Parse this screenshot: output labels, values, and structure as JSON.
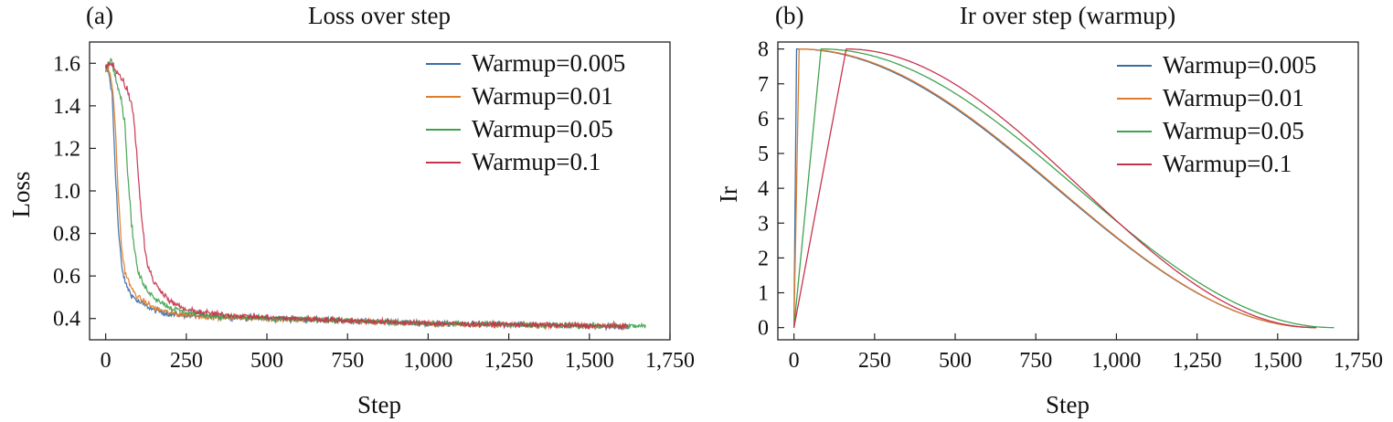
{
  "chart_data": [
    {
      "panel_label": "(a)",
      "type": "line",
      "title": "Loss over step",
      "xlabel": "Step",
      "ylabel": "Loss",
      "xlim": [
        -50,
        1750
      ],
      "ylim": [
        0.3,
        1.7
      ],
      "xticks": [
        0,
        250,
        500,
        750,
        1000,
        1250,
        1500,
        1750
      ],
      "xtick_labels": [
        "0",
        "250",
        "500",
        "750",
        "1,000",
        "1,250",
        "1,500",
        "1,750"
      ],
      "yticks": [
        0.4,
        0.6,
        0.8,
        1.0,
        1.2,
        1.4,
        1.6
      ],
      "ytick_labels": [
        "0.4",
        "0.6",
        "0.8",
        "1.0",
        "1.2",
        "1.4",
        "1.6"
      ],
      "legend_position": "top-right",
      "series": [
        {
          "name": "Warmup=0.005",
          "color": "#3b6ea5",
          "end_step": 1620,
          "points": [
            [
              0,
              1.58
            ],
            [
              10,
              1.55
            ],
            [
              20,
              1.45
            ],
            [
              30,
              1.1
            ],
            [
              40,
              0.8
            ],
            [
              50,
              0.64
            ],
            [
              60,
              0.57
            ],
            [
              80,
              0.51
            ],
            [
              100,
              0.48
            ],
            [
              150,
              0.44
            ],
            [
              200,
              0.42
            ],
            [
              300,
              0.41
            ],
            [
              500,
              0.4
            ],
            [
              750,
              0.39
            ],
            [
              1000,
              0.375
            ],
            [
              1250,
              0.37
            ],
            [
              1500,
              0.365
            ],
            [
              1620,
              0.362
            ]
          ]
        },
        {
          "name": "Warmup=0.01",
          "color": "#e07b2a",
          "end_step": 1620,
          "points": [
            [
              0,
              1.58
            ],
            [
              10,
              1.57
            ],
            [
              20,
              1.5
            ],
            [
              30,
              1.3
            ],
            [
              40,
              0.95
            ],
            [
              50,
              0.72
            ],
            [
              60,
              0.62
            ],
            [
              80,
              0.54
            ],
            [
              100,
              0.5
            ],
            [
              150,
              0.45
            ],
            [
              200,
              0.425
            ],
            [
              300,
              0.41
            ],
            [
              500,
              0.4
            ],
            [
              750,
              0.39
            ],
            [
              1000,
              0.375
            ],
            [
              1250,
              0.37
            ],
            [
              1500,
              0.365
            ],
            [
              1620,
              0.362
            ]
          ]
        },
        {
          "name": "Warmup=0.05",
          "color": "#3fa34d",
          "end_step": 1675,
          "points": [
            [
              0,
              1.58
            ],
            [
              15,
              1.62
            ],
            [
              30,
              1.55
            ],
            [
              50,
              1.42
            ],
            [
              60,
              1.3
            ],
            [
              70,
              1.05
            ],
            [
              80,
              0.85
            ],
            [
              90,
              0.72
            ],
            [
              100,
              0.62
            ],
            [
              120,
              0.55
            ],
            [
              150,
              0.5
            ],
            [
              200,
              0.45
            ],
            [
              250,
              0.43
            ],
            [
              350,
              0.41
            ],
            [
              500,
              0.4
            ],
            [
              750,
              0.39
            ],
            [
              1000,
              0.378
            ],
            [
              1250,
              0.372
            ],
            [
              1500,
              0.366
            ],
            [
              1675,
              0.364
            ]
          ]
        },
        {
          "name": "Warmup=0.1",
          "color": "#c8324e",
          "end_step": 1620,
          "points": [
            [
              0,
              1.58
            ],
            [
              20,
              1.6
            ],
            [
              40,
              1.55
            ],
            [
              60,
              1.5
            ],
            [
              80,
              1.42
            ],
            [
              90,
              1.3
            ],
            [
              100,
              1.1
            ],
            [
              110,
              0.9
            ],
            [
              120,
              0.75
            ],
            [
              130,
              0.65
            ],
            [
              150,
              0.57
            ],
            [
              200,
              0.48
            ],
            [
              250,
              0.44
            ],
            [
              350,
              0.42
            ],
            [
              500,
              0.405
            ],
            [
              750,
              0.39
            ],
            [
              1000,
              0.378
            ],
            [
              1250,
              0.372
            ],
            [
              1500,
              0.366
            ],
            [
              1620,
              0.364
            ]
          ]
        }
      ]
    },
    {
      "panel_label": "(b)",
      "type": "line",
      "title": "Ir over step (warmup)",
      "xlabel": "Step",
      "ylabel": "Ir",
      "xlim": [
        -50,
        1750
      ],
      "ylim": [
        -0.35,
        8.2
      ],
      "xticks": [
        0,
        250,
        500,
        750,
        1000,
        1250,
        1500,
        1750
      ],
      "xtick_labels": [
        "0",
        "250",
        "500",
        "750",
        "1,000",
        "1,250",
        "1,500",
        "1,750"
      ],
      "yticks": [
        0,
        1,
        2,
        3,
        4,
        5,
        6,
        7,
        8
      ],
      "ytick_labels": [
        "0",
        "1",
        "2",
        "3",
        "4",
        "5",
        "6",
        "7",
        "8"
      ],
      "legend_position": "top-right",
      "peak_lr": 8,
      "series": [
        {
          "name": "Warmup=0.005",
          "color": "#3b6ea5",
          "warmup_steps": 8,
          "total_steps": 1620
        },
        {
          "name": "Warmup=0.01",
          "color": "#e07b2a",
          "warmup_steps": 16,
          "total_steps": 1620
        },
        {
          "name": "Warmup=0.05",
          "color": "#3fa34d",
          "warmup_steps": 84,
          "total_steps": 1675
        },
        {
          "name": "Warmup=0.1",
          "color": "#c8324e",
          "warmup_steps": 162,
          "total_steps": 1620
        }
      ]
    }
  ]
}
